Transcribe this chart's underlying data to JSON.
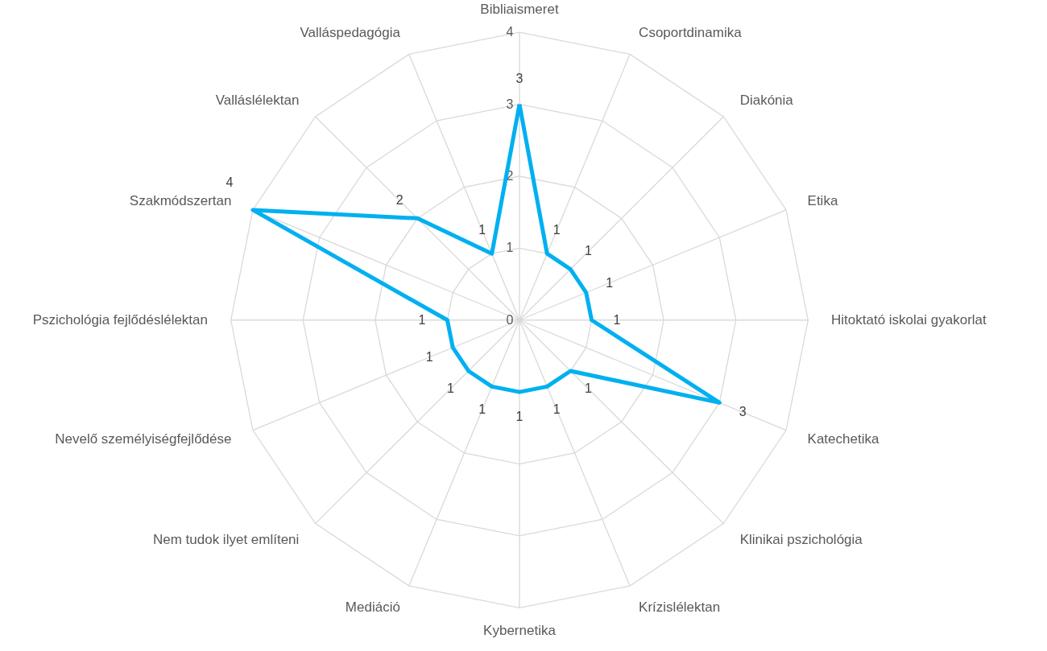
{
  "chart_data": {
    "type": "radar",
    "categories": [
      "Bibliaismeret",
      "Csoportdinamika",
      "Diakónia",
      "Etika",
      "Hitoktató iskolai gyakorlat",
      "Katechetika",
      "Klinikai pszichológia",
      "Krízislélektan",
      "Kybernetika",
      "Mediáció",
      "Nem tudok ilyet említeni",
      "Nevelő személyiségfejlődése",
      "Pszichológia fejlődéslélektan",
      "Szakmódszertan",
      "Valláslélektan",
      "Valláspedagógia"
    ],
    "series": [
      {
        "color": "#00b0f0",
        "values": [
          3,
          1,
          1,
          1,
          1,
          3,
          1,
          1,
          1,
          1,
          1,
          1,
          1,
          4,
          2,
          1
        ]
      }
    ],
    "ylim": [
      0,
      4
    ],
    "yticks": [
      0,
      1,
      2,
      3,
      4
    ],
    "grid": true,
    "data_labels": true
  }
}
